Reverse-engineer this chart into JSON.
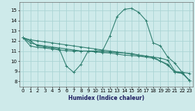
{
  "xlabel": "Humidex (Indice chaleur)",
  "xlim": [
    -0.5,
    23.5
  ],
  "ylim": [
    7.5,
    15.8
  ],
  "yticks": [
    8,
    9,
    10,
    11,
    12,
    13,
    14,
    15
  ],
  "xticks": [
    0,
    1,
    2,
    3,
    4,
    5,
    6,
    7,
    8,
    9,
    10,
    11,
    12,
    13,
    14,
    15,
    16,
    17,
    18,
    19,
    20,
    21,
    22,
    23
  ],
  "bg_color": "#ceeaea",
  "grid_color": "#aad4d4",
  "line_color": "#2d7d6e",
  "lines": [
    {
      "x": [
        0,
        1,
        2,
        3,
        4,
        5,
        6,
        7,
        8,
        9,
        10,
        11,
        12,
        13,
        14,
        15,
        16,
        17,
        18,
        19,
        20,
        21,
        22,
        23
      ],
      "y": [
        12.3,
        12.0,
        11.5,
        11.4,
        11.3,
        11.2,
        9.5,
        8.9,
        9.7,
        11.0,
        11.0,
        11.05,
        12.5,
        14.4,
        15.1,
        15.2,
        14.8,
        14.0,
        11.8,
        11.5,
        10.4,
        9.8,
        8.9,
        8.8
      ]
    },
    {
      "x": [
        0,
        1,
        2,
        3,
        4,
        5,
        6,
        7,
        8,
        9,
        10,
        11,
        12,
        13,
        14,
        15,
        16,
        17,
        18,
        19,
        20,
        21,
        22,
        23
      ],
      "y": [
        12.3,
        11.8,
        11.6,
        11.5,
        11.4,
        11.3,
        11.2,
        11.1,
        11.0,
        11.0,
        11.0,
        10.95,
        10.9,
        10.85,
        10.8,
        10.75,
        10.6,
        10.5,
        10.4,
        10.0,
        9.7,
        8.9,
        8.85,
        8.1
      ]
    },
    {
      "x": [
        0,
        1,
        2,
        3,
        4,
        5,
        6,
        7,
        8,
        9,
        10,
        11,
        12,
        13,
        14,
        15,
        16,
        17,
        18,
        19,
        20,
        21,
        22,
        23
      ],
      "y": [
        12.3,
        11.5,
        11.35,
        11.3,
        11.2,
        11.1,
        11.05,
        11.0,
        11.0,
        11.0,
        10.9,
        10.85,
        10.8,
        10.7,
        10.6,
        10.55,
        10.5,
        10.4,
        10.3,
        10.0,
        9.6,
        8.9,
        8.8,
        8.1
      ]
    },
    {
      "x": [
        0,
        1,
        2,
        3,
        4,
        5,
        6,
        7,
        8,
        9,
        10,
        11,
        12,
        13,
        14,
        15,
        16,
        17,
        18,
        19,
        20,
        21,
        22,
        23
      ],
      "y": [
        12.3,
        12.1,
        12.0,
        11.9,
        11.8,
        11.7,
        11.6,
        11.5,
        11.4,
        11.3,
        11.2,
        11.1,
        11.0,
        10.9,
        10.8,
        10.7,
        10.6,
        10.5,
        10.4,
        10.3,
        10.1,
        9.0,
        8.9,
        8.1
      ]
    }
  ]
}
